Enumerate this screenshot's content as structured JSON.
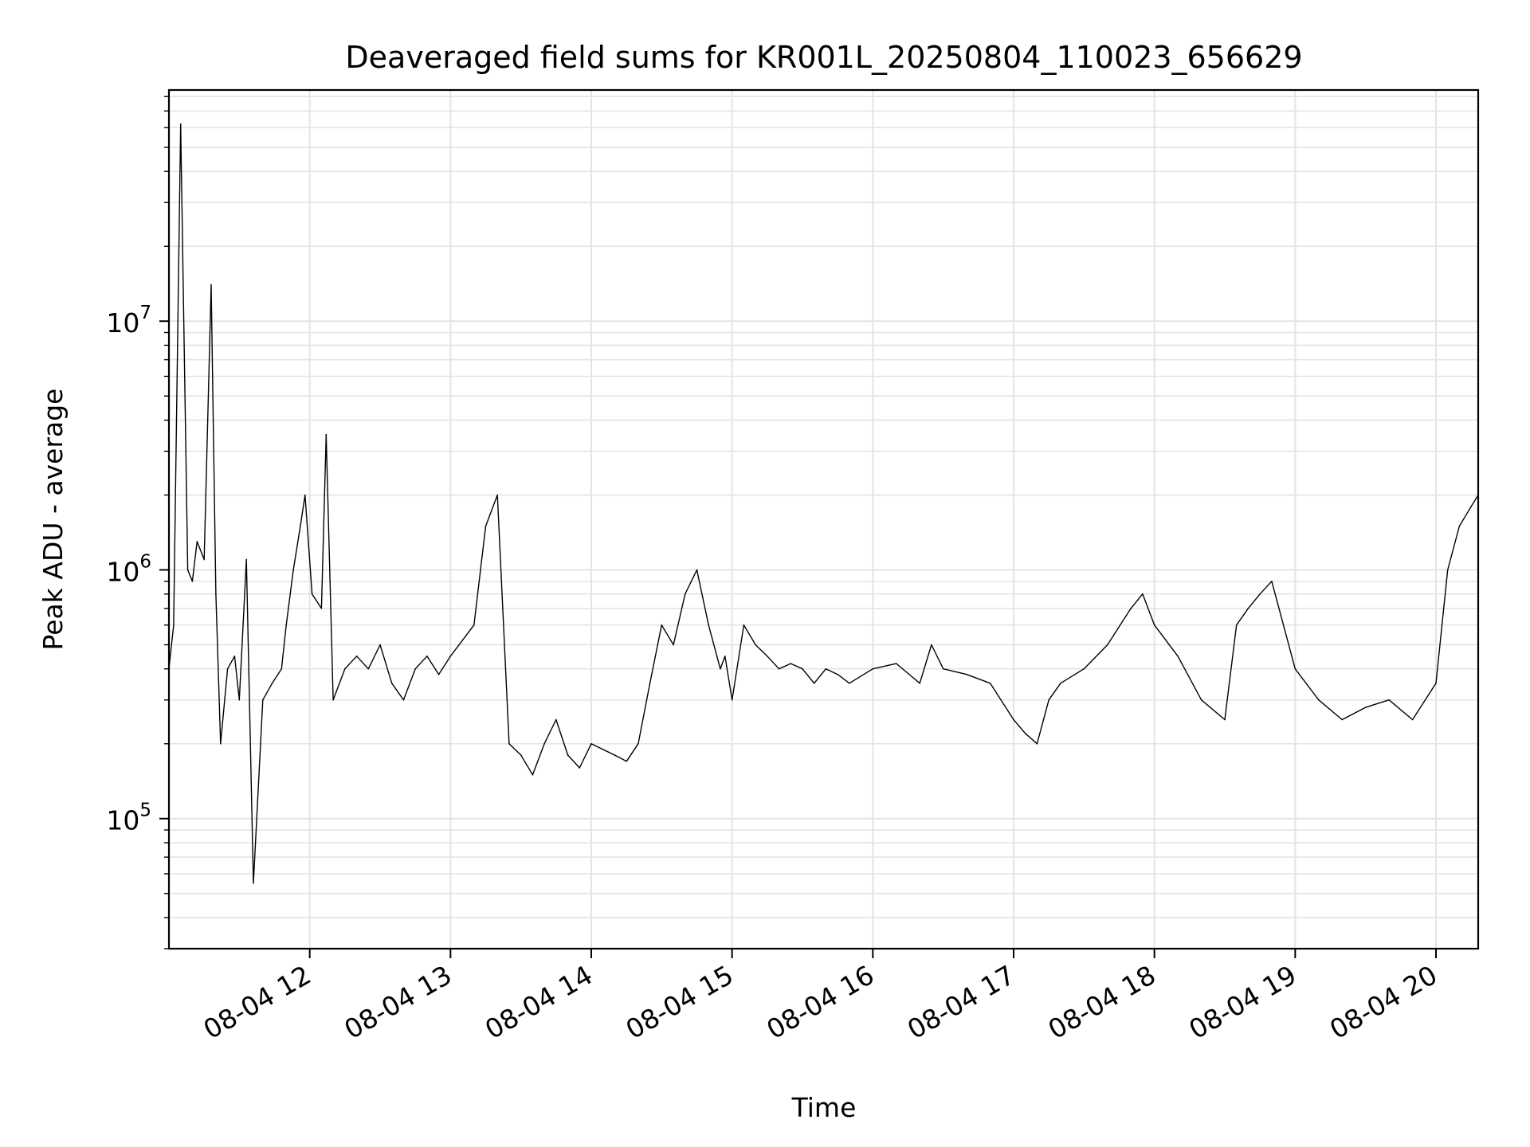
{
  "chart_data": {
    "type": "line",
    "title": "Deaveraged field sums for KR001L_20250804_110023_656629",
    "xlabel": "Time",
    "ylabel": "Peak ADU - average",
    "yscale": "log",
    "grid": true,
    "line_color": "#000000",
    "xlim": [
      "2025-08-04 11:00",
      "2025-08-04 20:18"
    ],
    "ylim": [
      30000,
      85000000
    ],
    "xticks": [
      {
        "time": "2025-08-04 12:00",
        "label": "08-04 12"
      },
      {
        "time": "2025-08-04 13:00",
        "label": "08-04 13"
      },
      {
        "time": "2025-08-04 14:00",
        "label": "08-04 14"
      },
      {
        "time": "2025-08-04 15:00",
        "label": "08-04 15"
      },
      {
        "time": "2025-08-04 16:00",
        "label": "08-04 16"
      },
      {
        "time": "2025-08-04 17:00",
        "label": "08-04 17"
      },
      {
        "time": "2025-08-04 18:00",
        "label": "08-04 18"
      },
      {
        "time": "2025-08-04 19:00",
        "label": "08-04 19"
      },
      {
        "time": "2025-08-04 20:00",
        "label": "08-04 20"
      }
    ],
    "yticks": [
      {
        "value": 100000,
        "base": "10",
        "exp": "5"
      },
      {
        "value": 1000000,
        "base": "10",
        "exp": "6"
      },
      {
        "value": 10000000,
        "base": "10",
        "exp": "7"
      }
    ],
    "series": [
      {
        "x": [
          "2025-08-04 11:00",
          "2025-08-04 11:02",
          "2025-08-04 11:05",
          "2025-08-04 11:08",
          "2025-08-04 11:10",
          "2025-08-04 11:12",
          "2025-08-04 11:15",
          "2025-08-04 11:18",
          "2025-08-04 11:20",
          "2025-08-04 11:22",
          "2025-08-04 11:25",
          "2025-08-04 11:28",
          "2025-08-04 11:30",
          "2025-08-04 11:33",
          "2025-08-04 11:36",
          "2025-08-04 11:40",
          "2025-08-04 11:44",
          "2025-08-04 11:48",
          "2025-08-04 11:50",
          "2025-08-04 11:53",
          "2025-08-04 11:56",
          "2025-08-04 11:58",
          "2025-08-04 12:01",
          "2025-08-04 12:05",
          "2025-08-04 12:07",
          "2025-08-04 12:10",
          "2025-08-04 12:15",
          "2025-08-04 12:20",
          "2025-08-04 12:25",
          "2025-08-04 12:30",
          "2025-08-04 12:35",
          "2025-08-04 12:40",
          "2025-08-04 12:45",
          "2025-08-04 12:50",
          "2025-08-04 12:55",
          "2025-08-04 13:00",
          "2025-08-04 13:10",
          "2025-08-04 13:15",
          "2025-08-04 13:20",
          "2025-08-04 13:25",
          "2025-08-04 13:30",
          "2025-08-04 13:35",
          "2025-08-04 13:40",
          "2025-08-04 13:45",
          "2025-08-04 13:50",
          "2025-08-04 13:55",
          "2025-08-04 14:00",
          "2025-08-04 14:10",
          "2025-08-04 14:15",
          "2025-08-04 14:20",
          "2025-08-04 14:25",
          "2025-08-04 14:30",
          "2025-08-04 14:35",
          "2025-08-04 14:40",
          "2025-08-04 14:45",
          "2025-08-04 14:50",
          "2025-08-04 14:55",
          "2025-08-04 14:57",
          "2025-08-04 15:00",
          "2025-08-04 15:05",
          "2025-08-04 15:10",
          "2025-08-04 15:15",
          "2025-08-04 15:20",
          "2025-08-04 15:25",
          "2025-08-04 15:30",
          "2025-08-04 15:35",
          "2025-08-04 15:40",
          "2025-08-04 15:45",
          "2025-08-04 15:50",
          "2025-08-04 16:00",
          "2025-08-04 16:10",
          "2025-08-04 16:20",
          "2025-08-04 16:25",
          "2025-08-04 16:30",
          "2025-08-04 16:40",
          "2025-08-04 16:50",
          "2025-08-04 17:00",
          "2025-08-04 17:05",
          "2025-08-04 17:10",
          "2025-08-04 17:15",
          "2025-08-04 17:20",
          "2025-08-04 17:30",
          "2025-08-04 17:40",
          "2025-08-04 17:50",
          "2025-08-04 17:55",
          "2025-08-04 18:00",
          "2025-08-04 18:10",
          "2025-08-04 18:20",
          "2025-08-04 18:30",
          "2025-08-04 18:35",
          "2025-08-04 18:40",
          "2025-08-04 18:45",
          "2025-08-04 18:50",
          "2025-08-04 19:00",
          "2025-08-04 19:10",
          "2025-08-04 19:20",
          "2025-08-04 19:30",
          "2025-08-04 19:40",
          "2025-08-04 19:50",
          "2025-08-04 20:00",
          "2025-08-04 20:05",
          "2025-08-04 20:10",
          "2025-08-04 20:15",
          "2025-08-04 20:18"
        ],
        "y": [
          400000,
          600000,
          62000000,
          1000000,
          900000,
          1300000,
          1100000,
          14000000,
          800000,
          200000,
          400000,
          450000,
          300000,
          1100000,
          55000,
          300000,
          350000,
          400000,
          600000,
          1000000,
          1500000,
          2000000,
          800000,
          700000,
          3500000,
          300000,
          400000,
          450000,
          400000,
          500000,
          350000,
          300000,
          400000,
          450000,
          380000,
          450000,
          600000,
          1500000,
          2000000,
          200000,
          180000,
          150000,
          200000,
          250000,
          180000,
          160000,
          200000,
          180000,
          170000,
          200000,
          350000,
          600000,
          500000,
          800000,
          1000000,
          600000,
          400000,
          450000,
          300000,
          600000,
          500000,
          450000,
          400000,
          420000,
          400000,
          350000,
          400000,
          380000,
          350000,
          400000,
          420000,
          350000,
          500000,
          400000,
          380000,
          350000,
          250000,
          220000,
          200000,
          300000,
          350000,
          400000,
          500000,
          700000,
          800000,
          600000,
          450000,
          300000,
          250000,
          600000,
          700000,
          800000,
          900000,
          400000,
          300000,
          250000,
          280000,
          300000,
          250000,
          350000,
          1000000,
          1500000,
          1800000,
          2000000
        ]
      }
    ]
  }
}
